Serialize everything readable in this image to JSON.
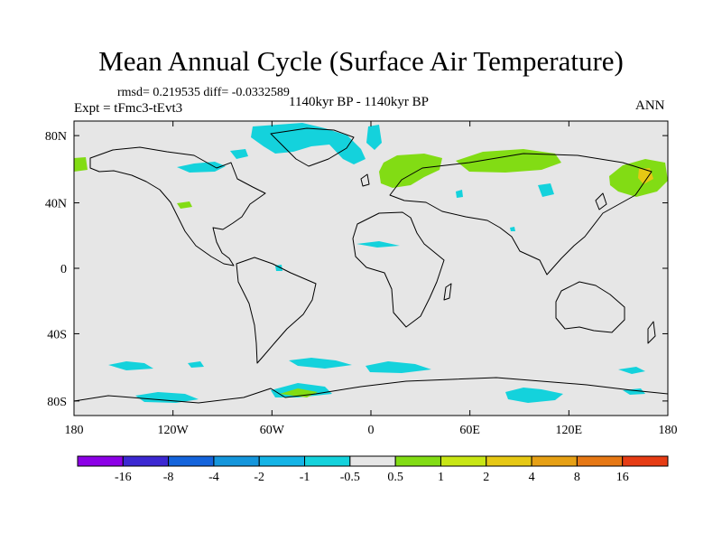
{
  "title": "Mean Annual Cycle (Surface Air Temperature)",
  "stats": {
    "rmsd_label": "rmsd=",
    "rmsd": "0.219535",
    "diff_label": "diff=",
    "diff": "-0.0332589"
  },
  "expt_label": "Expt = tFmc3-tEvt3",
  "period_label": "1140kyr BP - 1140kyr BP",
  "season_label": "ANN",
  "map": {
    "background_color": "#e6e6e6",
    "lon_ticks": [
      "180",
      "120W",
      "60W",
      "0",
      "60E",
      "120E",
      "180"
    ],
    "lat_ticks": [
      "80N",
      "40N",
      "0",
      "40S",
      "80S"
    ]
  },
  "colorbar": {
    "colors": [
      "#8c00e6",
      "#3c28d2",
      "#1464dc",
      "#1496dc",
      "#14b4e6",
      "#14d2dc",
      "#e6e6e6",
      "#82dc14",
      "#c8e614",
      "#e6c814",
      "#e6a014",
      "#e67814",
      "#e63c14"
    ],
    "labels": [
      "-16",
      "-8",
      "-4",
      "-2",
      "-1",
      "-0.5",
      "0.5",
      "1",
      "2",
      "4",
      "8",
      "16"
    ]
  },
  "anomaly_colors": {
    "cyan": "#14d2dc",
    "green": "#82dc14",
    "yellow": "#e6c814"
  }
}
